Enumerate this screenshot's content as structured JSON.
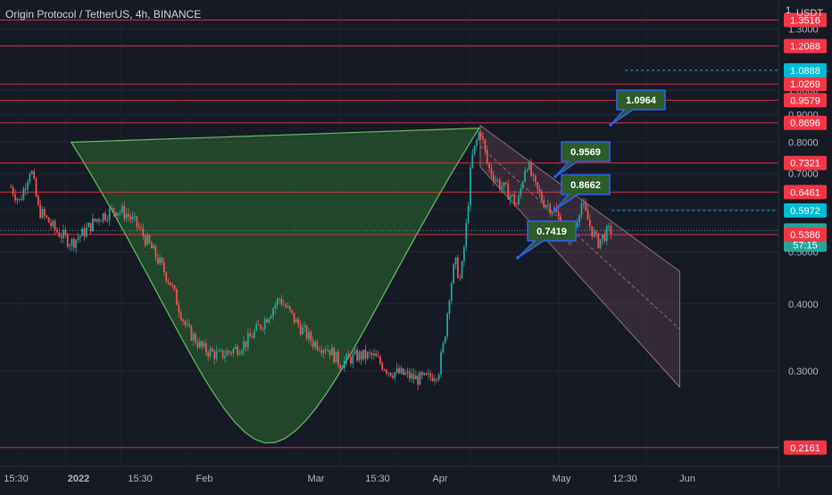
{
  "header": {
    "title": "Origin Protocol / TetherUS, 4h, BINANCE",
    "currency": "USDT",
    "scale_top": "1"
  },
  "colors": {
    "background": "#161a25",
    "level_line": "#f23645",
    "up_candle": "#26a69a",
    "down_candle": "#ef5350",
    "cup_fill": "#2e7d32",
    "channel_fill": "#6d4a59",
    "callout_fill": "#2e5b2a",
    "callout_border": "#2962ff",
    "current_price": "#26a69a",
    "target_price": "#00bcd4"
  },
  "chart_data": {
    "type": "candlestick",
    "title": "Origin Protocol / TetherUS, 4h, BINANCE",
    "y_scale": "log",
    "ylim": [
      0.2,
      1.45
    ],
    "x_ticks": [
      "15:30",
      "2022",
      "15:30",
      "Feb",
      "Mar",
      "15:30",
      "Apr",
      "May",
      "12:30",
      "Jun"
    ],
    "y_ticks": [
      0.3,
      0.4,
      0.5,
      0.6,
      0.7,
      0.8,
      0.9,
      1.0,
      1.3
    ],
    "y_tick_labels": [
      "0.3000",
      "0.4000",
      "0.5000",
      "0.6000",
      "0.7000",
      "0.8000",
      "0.9000",
      "1.0000",
      "1.3000"
    ],
    "horizontal_levels": [
      1.3516,
      1.2088,
      1.0269,
      0.9579,
      0.8696,
      0.7321,
      0.6461,
      0.5481,
      0.5386,
      0.2161
    ],
    "horizontal_level_labels": [
      "1.3516",
      "1.2088",
      "1.0269",
      "0.9579",
      "0.8696",
      "0.7321",
      "0.6461",
      "0.5481",
      "0.5386",
      "0.2161"
    ],
    "current_price": 0.5481,
    "current_price_label": "0.5481",
    "countdown": "57:15",
    "dotted_levels": [
      {
        "value": 1.0888,
        "label": "1.0888",
        "color": "#00bcd4"
      },
      {
        "value": 0.5972,
        "label": "0.5972",
        "color": "#00bcd4"
      }
    ],
    "callouts": [
      {
        "label": "1.0964",
        "value": 1.0964
      },
      {
        "label": "0.9569",
        "value": 0.9569
      },
      {
        "label": "0.8662",
        "value": 0.8662
      },
      {
        "label": "0.7419",
        "value": 0.7419
      }
    ],
    "price_path": [
      {
        "t": 0.0,
        "p": 0.66
      },
      {
        "t": 0.08,
        "p": 0.62
      },
      {
        "t": 0.18,
        "p": 0.72
      },
      {
        "t": 0.25,
        "p": 0.6
      },
      {
        "t": 0.4,
        "p": 0.55
      },
      {
        "t": 0.55,
        "p": 0.52
      },
      {
        "t": 0.65,
        "p": 0.54
      },
      {
        "t": 0.8,
        "p": 0.58
      },
      {
        "t": 0.95,
        "p": 0.6
      },
      {
        "t": 1.05,
        "p": 0.59
      },
      {
        "t": 1.15,
        "p": 0.56
      },
      {
        "t": 1.3,
        "p": 0.5
      },
      {
        "t": 1.45,
        "p": 0.44
      },
      {
        "t": 1.6,
        "p": 0.36
      },
      {
        "t": 1.75,
        "p": 0.33
      },
      {
        "t": 1.9,
        "p": 0.32
      },
      {
        "t": 2.05,
        "p": 0.33
      },
      {
        "t": 2.15,
        "p": 0.34
      },
      {
        "t": 2.3,
        "p": 0.37
      },
      {
        "t": 2.45,
        "p": 0.41
      },
      {
        "t": 2.6,
        "p": 0.37
      },
      {
        "t": 2.75,
        "p": 0.34
      },
      {
        "t": 2.9,
        "p": 0.33
      },
      {
        "t": 3.0,
        "p": 0.31
      },
      {
        "t": 3.15,
        "p": 0.32
      },
      {
        "t": 3.3,
        "p": 0.32
      },
      {
        "t": 3.45,
        "p": 0.3
      },
      {
        "t": 3.6,
        "p": 0.295
      },
      {
        "t": 3.7,
        "p": 0.29
      },
      {
        "t": 3.8,
        "p": 0.29
      },
      {
        "t": 3.9,
        "p": 0.3
      },
      {
        "t": 3.95,
        "p": 0.34
      },
      {
        "t": 4.0,
        "p": 0.42
      },
      {
        "t": 4.05,
        "p": 0.48
      },
      {
        "t": 4.1,
        "p": 0.44
      },
      {
        "t": 4.15,
        "p": 0.55
      },
      {
        "t": 4.2,
        "p": 0.74
      },
      {
        "t": 4.28,
        "p": 0.85
      },
      {
        "t": 4.35,
        "p": 0.72
      },
      {
        "t": 4.45,
        "p": 0.67
      },
      {
        "t": 4.55,
        "p": 0.64
      },
      {
        "t": 4.62,
        "p": 0.61
      },
      {
        "t": 4.7,
        "p": 0.74
      },
      {
        "t": 4.78,
        "p": 0.66
      },
      {
        "t": 4.86,
        "p": 0.62
      },
      {
        "t": 4.95,
        "p": 0.6
      },
      {
        "t": 5.05,
        "p": 0.55
      },
      {
        "t": 5.12,
        "p": 0.53
      },
      {
        "t": 5.2,
        "p": 0.62
      },
      {
        "t": 5.28,
        "p": 0.56
      },
      {
        "t": 5.35,
        "p": 0.52
      },
      {
        "t": 5.42,
        "p": 0.54
      },
      {
        "t": 5.48,
        "p": 0.55
      }
    ]
  }
}
